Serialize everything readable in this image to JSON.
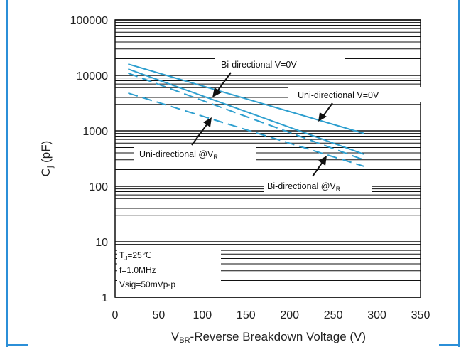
{
  "chart_data": {
    "type": "line",
    "scale": {
      "y": "log"
    },
    "xlim": [
      0,
      350
    ],
    "ylim": [
      1,
      100000
    ],
    "grid": true,
    "accent_color": "#2e9fcf",
    "xlabel": {
      "sub_label": "BR",
      "rest": "-Reverse Breakdown Voltage (V)",
      "main": "V"
    },
    "ylabel": {
      "main": "C",
      "sub": "j",
      "rest": " (pF)"
    },
    "x_ticks": [
      "0",
      "50",
      "100",
      "150",
      "200",
      "250",
      "300",
      "350"
    ],
    "y_ticks": [
      "1",
      "10",
      "100",
      "1000",
      "10000",
      "100000"
    ],
    "series": [
      {
        "name": "Bi-directional V=0V",
        "style": "solid",
        "x": [
          15,
          285
        ],
        "y": [
          16000,
          900
        ]
      },
      {
        "name": "Uni-directional V=0V",
        "style": "solid",
        "x": [
          15,
          285
        ],
        "y": [
          13000,
          380
        ]
      },
      {
        "name": "Bi-directional @VR",
        "style": "dashed",
        "x": [
          15,
          285
        ],
        "y": [
          11000,
          300
        ]
      },
      {
        "name": "Uni-directional @VR",
        "style": "dashed",
        "x": [
          15,
          285
        ],
        "y": [
          4800,
          230
        ]
      }
    ],
    "annotations": [
      {
        "id": "bi0",
        "text": "Bi-directional V=0V",
        "sub": ""
      },
      {
        "id": "uni0",
        "text": "Uni-directional V=0V",
        "sub": ""
      },
      {
        "id": "univr",
        "text": "Uni-directional @V",
        "sub": "R"
      },
      {
        "id": "bivr",
        "text": "Bi-directional @V",
        "sub": "R"
      }
    ],
    "conditions": {
      "line1": "T =25℃",
      "line1_sub": "J",
      "line2": "f=1.0MHz",
      "line3": "Vsig=50mVp-p"
    }
  }
}
